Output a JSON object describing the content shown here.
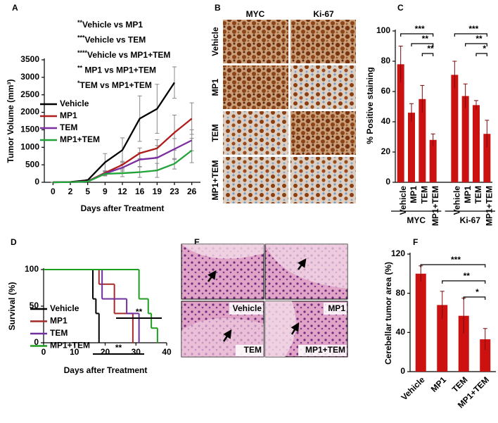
{
  "panel_labels": [
    "A",
    "B",
    "C",
    "D",
    "E",
    "F"
  ],
  "panel_b": {
    "columns": [
      "MYC",
      "Ki-67"
    ],
    "rows": [
      "Vehicle",
      "MP1",
      "TEM",
      "MP1+TEM"
    ]
  },
  "panel_e": {
    "images": [
      "Vehicle",
      "MP1",
      "TEM",
      "MP1+TEM"
    ]
  },
  "chart_data": [
    {
      "type": "line",
      "categories": [
        "0",
        "2",
        "5",
        "9",
        "12",
        "16",
        "19",
        "23",
        "26"
      ],
      "x_label": "Days after Treatment",
      "y_label": "Tumor Volume (mm³)",
      "ylim": [
        0,
        3500
      ],
      "yticks": [
        0,
        500,
        1000,
        1500,
        2000,
        2500,
        3000,
        3500
      ],
      "annotations": [
        {
          "stars": "**",
          "text": "Vehicle vs MP1"
        },
        {
          "stars": "***",
          "text": "Vehicle vs TEM"
        },
        {
          "stars": "****",
          "text": "Vehicle vs MP1+TEM"
        },
        {
          "stars": "**",
          "text": " MP1 vs MP1+TEM"
        },
        {
          "stars": "*",
          "text": "TEM vs MP1+TEM"
        }
      ],
      "series": [
        {
          "name": "Vehicle",
          "color": "#000000",
          "values": [
            0,
            10,
            60,
            570,
            920,
            1820,
            2100,
            2850,
            null
          ],
          "errors": [
            0,
            0,
            20,
            250,
            350,
            650,
            700,
            450,
            null
          ]
        },
        {
          "name": "MP1",
          "color": "#b01c1c",
          "values": [
            0,
            5,
            30,
            270,
            500,
            830,
            970,
            1420,
            1820
          ],
          "errors": [
            0,
            0,
            10,
            60,
            100,
            150,
            250,
            500,
            450
          ]
        },
        {
          "name": "TEM",
          "color": "#7b2fa0",
          "values": [
            0,
            5,
            25,
            250,
            420,
            650,
            700,
            950,
            1200
          ],
          "errors": [
            0,
            0,
            10,
            50,
            100,
            200,
            350,
            300,
            300
          ]
        },
        {
          "name": "MP1+TEM",
          "color": "#21a33a",
          "values": [
            0,
            5,
            20,
            240,
            260,
            290,
            340,
            530,
            910
          ],
          "errors": [
            0,
            0,
            10,
            60,
            100,
            150,
            200,
            150,
            350
          ]
        }
      ]
    },
    {
      "type": "bar",
      "categories": [
        "Vehicle",
        "MP1",
        "TEM",
        "MP1+TEM",
        "Vehicle",
        "MP1",
        "TEM",
        "MP1+TEM"
      ],
      "groups": [
        "MYC",
        "Ki-67"
      ],
      "values": [
        78,
        46,
        55,
        28,
        71,
        57,
        51,
        32
      ],
      "errors": [
        12,
        6,
        9,
        4,
        9,
        8,
        3,
        9
      ],
      "color": "#cc1111",
      "y_label": "% Positive staining",
      "ylim": [
        0,
        100
      ],
      "yticks": [
        0,
        20,
        40,
        60,
        80,
        100
      ],
      "significance": [
        {
          "label": "***",
          "from": 0,
          "to": 3
        },
        {
          "label": "**",
          "from": 1,
          "to": 3
        },
        {
          "label": "**",
          "from": 2,
          "to": 3
        },
        {
          "label": "***",
          "from": 4,
          "to": 7
        },
        {
          "label": "**",
          "from": 5,
          "to": 7
        },
        {
          "label": "*",
          "from": 6,
          "to": 7
        }
      ]
    },
    {
      "type": "step",
      "x_label": "Days after Treatment",
      "y_label": "Survival (%)",
      "xlim": [
        0,
        40
      ],
      "xticks": [
        0,
        10,
        20,
        30,
        40
      ],
      "ylim": [
        0,
        100
      ],
      "yticks": [
        0,
        50,
        100
      ],
      "annotations": [
        "**",
        "**"
      ],
      "series": [
        {
          "name": "Vehicle",
          "color": "#000000",
          "x": [
            0,
            16,
            17,
            18
          ],
          "values": [
            100,
            60,
            40,
            0
          ]
        },
        {
          "name": "MP1",
          "color": "#a52a2a",
          "x": [
            0,
            18,
            23,
            29
          ],
          "values": [
            100,
            80,
            40,
            0
          ]
        },
        {
          "name": "TEM",
          "color": "#7030a0",
          "x": [
            0,
            19,
            27,
            31
          ],
          "values": [
            100,
            60,
            40,
            0
          ]
        },
        {
          "name": "MP1+TEM",
          "color": "#1e9e1e",
          "x": [
            0,
            31,
            34,
            35,
            37
          ],
          "values": [
            100,
            60,
            40,
            20,
            0
          ]
        }
      ]
    },
    {
      "type": "bar",
      "categories": [
        "Vehicle",
        "MP1",
        "TEM",
        "MP1+TEM"
      ],
      "values": [
        100,
        68,
        57,
        33
      ],
      "errors": [
        8,
        14,
        18,
        11
      ],
      "color": "#cc1111",
      "y_label": "Cerebellar tumor area (%)",
      "ylim": [
        0,
        120
      ],
      "yticks": [
        0,
        40,
        80,
        120
      ],
      "significance": [
        {
          "label": "***",
          "from": 0,
          "to": 3
        },
        {
          "label": "**",
          "from": 1,
          "to": 3
        },
        {
          "label": "*",
          "from": 2,
          "to": 3
        }
      ]
    }
  ]
}
